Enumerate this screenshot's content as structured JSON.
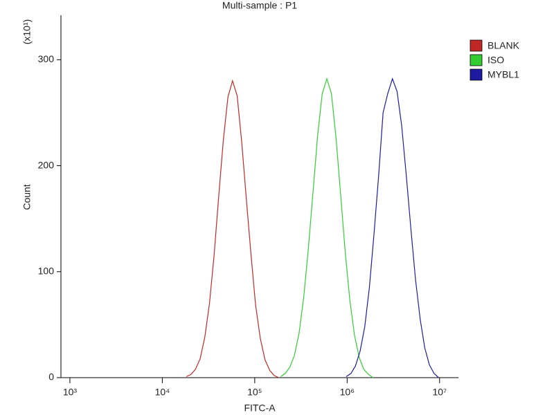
{
  "chart_data": {
    "type": "line",
    "title": "Multi-sample : P1",
    "xlabel": "FITC-A",
    "ylabel": "Count",
    "y_multiplier": "(x10¹)",
    "xscale": "log",
    "xlim": [
      800,
      16000000
    ],
    "ylim": [
      0,
      342
    ],
    "xticks": [
      {
        "value": 1000,
        "label": "10³"
      },
      {
        "value": 10000,
        "label": "10⁴"
      },
      {
        "value": 100000,
        "label": "10⁵"
      },
      {
        "value": 1000000,
        "label": "10⁶"
      },
      {
        "value": 10000000,
        "label": "10⁷"
      }
    ],
    "yticks": [
      0,
      100,
      200,
      300
    ],
    "legend": "right",
    "series": [
      {
        "name": "BLANK",
        "color": "#c02828",
        "x": [
          18200,
          20400,
          22900,
          25700,
          28800,
          32400,
          36300,
          40700,
          45700,
          51300,
          57500,
          64600,
          72400,
          81300,
          91200,
          102000,
          115000,
          129000,
          145000,
          162000,
          182000
        ],
        "values": [
          1,
          3,
          8,
          18,
          38,
          70,
          115,
          170,
          224,
          265,
          280,
          266,
          222,
          168,
          116,
          69,
          37,
          17,
          7,
          2,
          0
        ]
      },
      {
        "name": "ISO",
        "color": "#33cc33",
        "x": [
          191000,
          214000,
          240000,
          269000,
          302000,
          339000,
          380000,
          427000,
          479000,
          537000,
          603000,
          676000,
          759000,
          851000,
          955000,
          1070000,
          1200000,
          1350000,
          1510000,
          1700000,
          1910000
        ],
        "values": [
          1,
          4,
          10,
          21,
          42,
          76,
          121,
          175,
          228,
          268,
          282,
          268,
          226,
          172,
          118,
          73,
          40,
          19,
          8,
          3,
          0
        ]
      },
      {
        "name": "MYBL1",
        "color": "#1c1ca0",
        "x": [
          977000,
          1100000,
          1230000,
          1380000,
          1550000,
          1740000,
          1950000,
          2190000,
          2450000,
          2750000,
          3090000,
          3470000,
          3890000,
          4370000,
          4900000,
          5500000,
          6170000,
          6920000,
          7760000,
          8710000,
          9770000
        ],
        "values": [
          1,
          4,
          11,
          25,
          48,
          85,
          135,
          190,
          250,
          268,
          282,
          270,
          238,
          190,
          140,
          92,
          55,
          28,
          12,
          4,
          0
        ]
      }
    ]
  }
}
